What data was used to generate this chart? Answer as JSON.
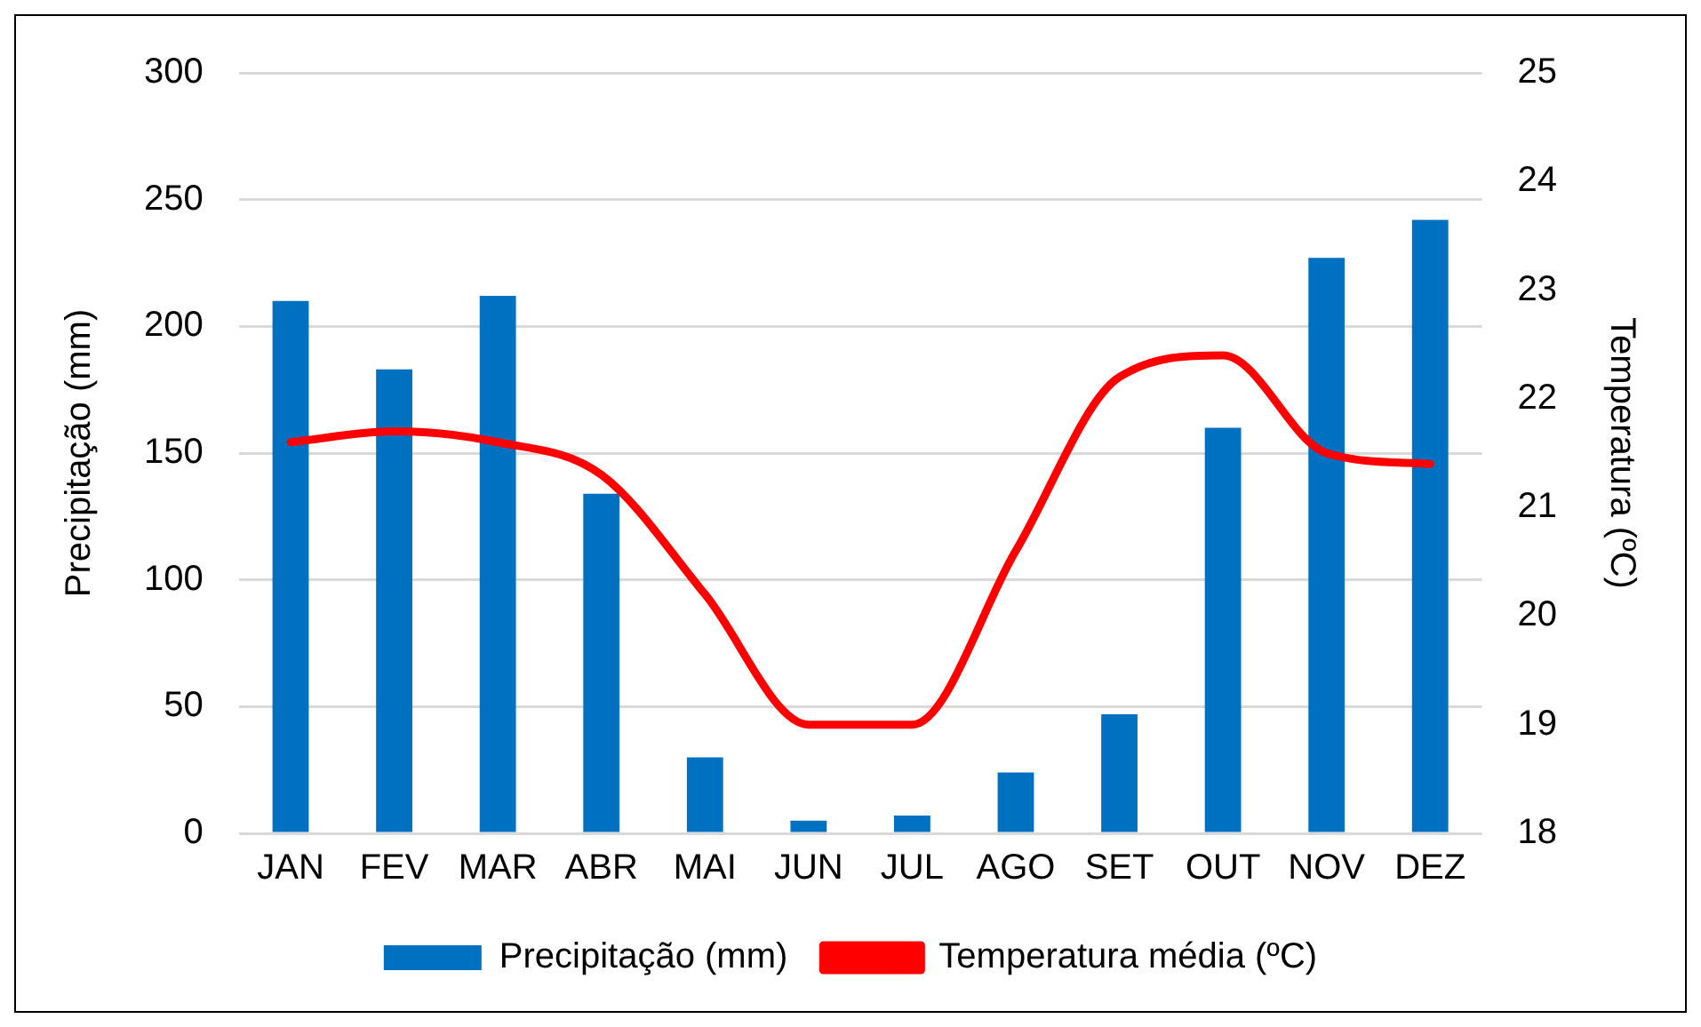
{
  "chart_data": {
    "type": "bar",
    "ylabel": "Precipitação (mm)",
    "y2label": "Temperatura (ºC)",
    "categories": [
      "JAN",
      "FEV",
      "MAR",
      "ABR",
      "MAI",
      "JUN",
      "JUL",
      "AGO",
      "SET",
      "OUT",
      "NOV",
      "DEZ"
    ],
    "series": [
      {
        "name": "Precipitação (mm)",
        "color": "#0070c0",
        "values": [
          210,
          183,
          212,
          134,
          30,
          5,
          7,
          24,
          47,
          160,
          227,
          242
        ]
      },
      {
        "name": "Temperatura média (ºC)",
        "type": "line",
        "axis": "y2",
        "color": "#ff0000",
        "marker": "none",
        "values": [
          21.6,
          21.7,
          21.6,
          21.3,
          20.2,
          19.0,
          19.0,
          20.6,
          22.2,
          22.4,
          21.5,
          21.4
        ]
      }
    ],
    "ylim": [
      0,
      300
    ],
    "yticks": [
      0,
      50,
      100,
      150,
      200,
      250,
      300
    ],
    "y2lim": [
      18,
      25
    ],
    "y2ticks": [
      18,
      19,
      20,
      21,
      22,
      23,
      24,
      25
    ],
    "grid": "y",
    "legend": "bottom"
  }
}
